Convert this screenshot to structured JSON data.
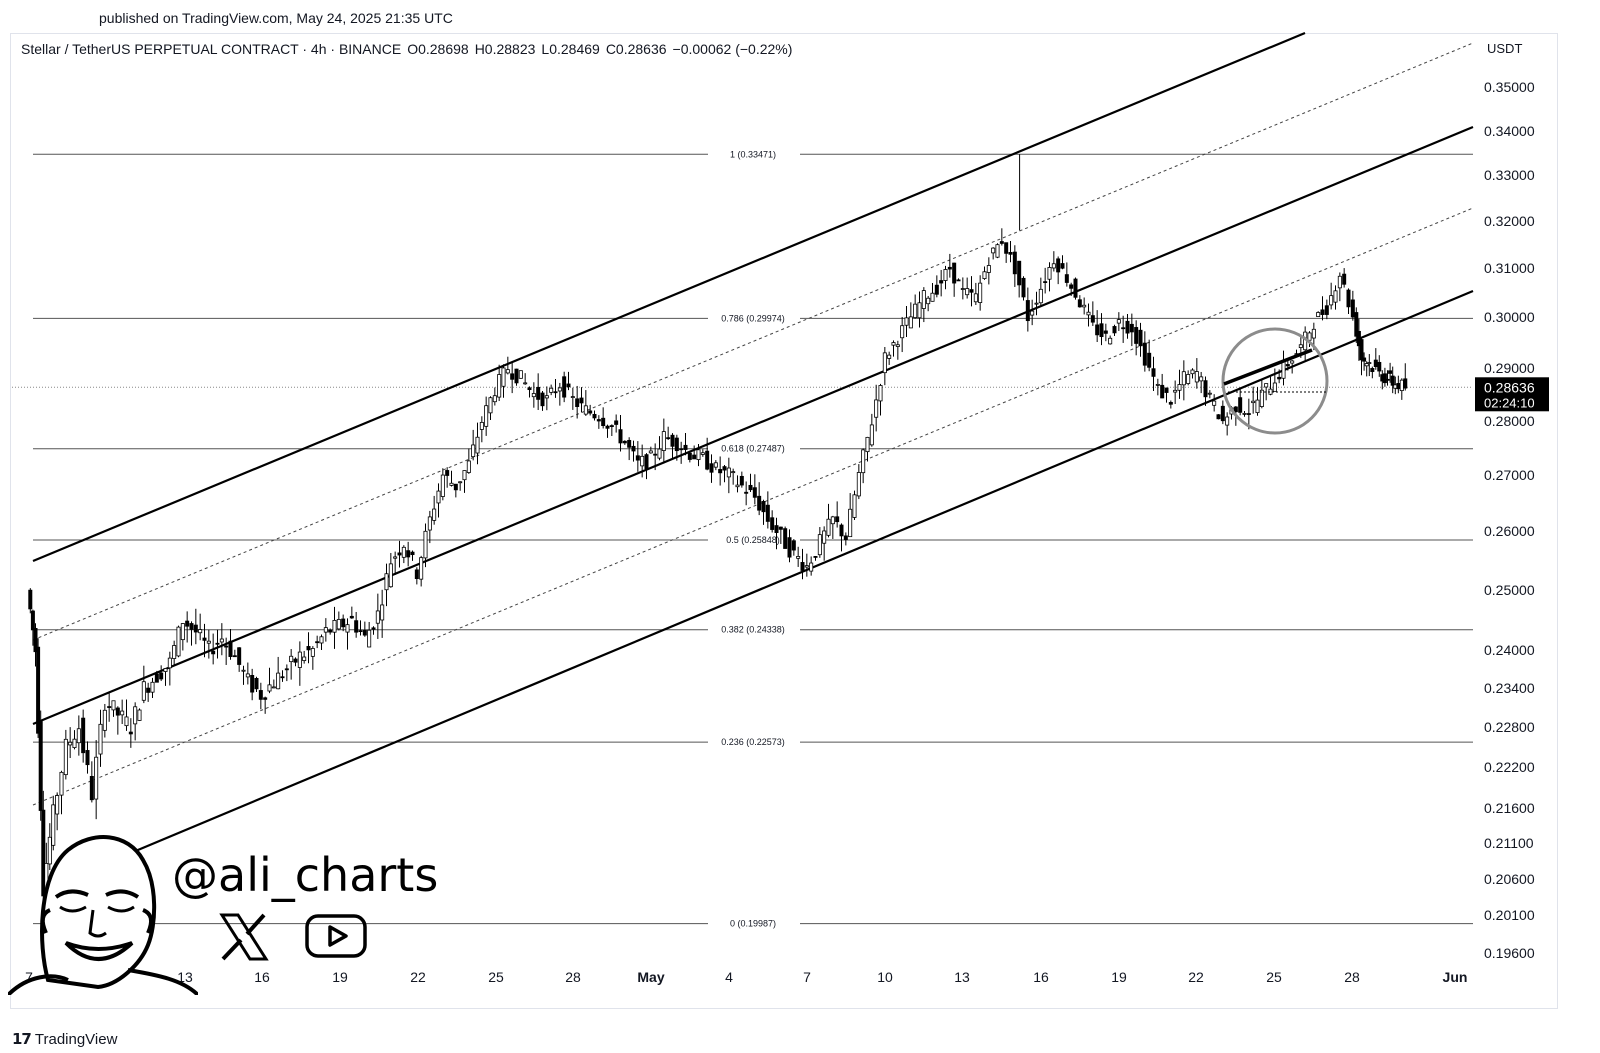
{
  "published": "published on TradingView.com, May 24, 2025 21:35 UTC",
  "symbol": {
    "name": "Stellar / TetherUS PERPETUAL CONTRACT · 4h · BINANCE",
    "open": "O0.28698",
    "high": "H0.28823",
    "low": "L0.28469",
    "close": "C0.28636",
    "change": "−0.00062 (−0.22%)"
  },
  "currency": "USDT",
  "brand": "TradingView",
  "watermark_handle": "@ali_charts",
  "chart_data": {
    "type": "candlestick",
    "y_axis_ticks": [
      "0.35000",
      "0.34000",
      "0.33000",
      "0.32000",
      "0.31000",
      "0.30000",
      "0.29000",
      "0.28000",
      "0.27000",
      "0.26000",
      "0.25000",
      "0.24000",
      "0.23400",
      "0.22800",
      "0.22200",
      "0.21600",
      "0.21100",
      "0.20600",
      "0.20100",
      "0.19600"
    ],
    "x_axis_ticks": [
      "7",
      "10",
      "13",
      "16",
      "19",
      "22",
      "25",
      "28",
      "May",
      "4",
      "7",
      "10",
      "13",
      "16",
      "19",
      "22",
      "25",
      "28",
      "Jun"
    ],
    "last_price": "0.28636",
    "countdown": "02:24:10",
    "fib_levels": [
      {
        "label": "1 (0.33471)",
        "value": 0.33471
      },
      {
        "label": "0.786 (0.29974)",
        "value": 0.29974
      },
      {
        "label": "0.618 (0.27487)",
        "value": 0.27487
      },
      {
        "label": "0.5 (0.25848)",
        "value": 0.25848
      },
      {
        "label": "0.382 (0.24338)",
        "value": 0.24338
      },
      {
        "label": "0.236 (0.22573)",
        "value": 0.22573
      },
      {
        "label": "0 (0.19987)",
        "value": 0.19987
      }
    ],
    "price_path": [
      [
        7.0,
        0.25
      ],
      [
        7.3,
        0.24
      ],
      [
        7.6,
        0.205
      ],
      [
        8.0,
        0.215
      ],
      [
        8.5,
        0.225
      ],
      [
        9.0,
        0.228
      ],
      [
        9.5,
        0.218
      ],
      [
        10.0,
        0.232
      ],
      [
        10.5,
        0.23
      ],
      [
        11.0,
        0.228
      ],
      [
        11.5,
        0.234
      ],
      [
        12.0,
        0.236
      ],
      [
        12.5,
        0.238
      ],
      [
        13.0,
        0.245
      ],
      [
        13.5,
        0.243
      ],
      [
        14.0,
        0.24
      ],
      [
        14.5,
        0.242
      ],
      [
        15.0,
        0.239
      ],
      [
        15.5,
        0.235
      ],
      [
        16.0,
        0.233
      ],
      [
        16.5,
        0.235
      ],
      [
        17.0,
        0.237
      ],
      [
        17.5,
        0.239
      ],
      [
        18.0,
        0.24
      ],
      [
        18.5,
        0.243
      ],
      [
        19.0,
        0.244
      ],
      [
        19.5,
        0.245
      ],
      [
        20.0,
        0.242
      ],
      [
        20.5,
        0.246
      ],
      [
        21.0,
        0.255
      ],
      [
        21.5,
        0.258
      ],
      [
        22.0,
        0.253
      ],
      [
        22.5,
        0.262
      ],
      [
        23.0,
        0.27
      ],
      [
        23.5,
        0.268
      ],
      [
        24.0,
        0.272
      ],
      [
        24.5,
        0.28
      ],
      [
        25.0,
        0.286
      ],
      [
        25.5,
        0.29
      ],
      [
        26.0,
        0.288
      ],
      [
        26.5,
        0.285
      ],
      [
        27.0,
        0.284
      ],
      [
        27.5,
        0.287
      ],
      [
        28.0,
        0.284
      ],
      [
        28.5,
        0.282
      ],
      [
        29.0,
        0.281
      ],
      [
        29.5,
        0.279
      ],
      [
        30.0,
        0.276
      ],
      [
        30.5,
        0.272
      ],
      [
        31.0,
        0.273
      ],
      [
        31.5,
        0.277
      ],
      [
        32.0,
        0.276
      ],
      [
        32.5,
        0.274
      ],
      [
        33.0,
        0.273
      ],
      [
        33.5,
        0.271
      ],
      [
        34.0,
        0.27
      ],
      [
        34.5,
        0.268
      ],
      [
        35.0,
        0.266
      ],
      [
        35.5,
        0.262
      ],
      [
        36.0,
        0.259
      ],
      [
        36.5,
        0.256
      ],
      [
        37.0,
        0.254
      ],
      [
        37.5,
        0.258
      ],
      [
        38.0,
        0.262
      ],
      [
        38.5,
        0.259
      ],
      [
        39.0,
        0.27
      ],
      [
        39.5,
        0.28
      ],
      [
        40.0,
        0.292
      ],
      [
        40.5,
        0.296
      ],
      [
        41.0,
        0.3
      ],
      [
        41.5,
        0.304
      ],
      [
        42.0,
        0.306
      ],
      [
        42.5,
        0.31
      ],
      [
        43.0,
        0.305
      ],
      [
        43.5,
        0.304
      ],
      [
        44.0,
        0.312
      ],
      [
        44.5,
        0.316
      ],
      [
        45.0,
        0.31
      ],
      [
        45.5,
        0.3
      ],
      [
        46.0,
        0.306
      ],
      [
        46.5,
        0.312
      ],
      [
        47.0,
        0.308
      ],
      [
        47.5,
        0.303
      ],
      [
        48.0,
        0.298
      ],
      [
        48.5,
        0.296
      ],
      [
        49.0,
        0.299
      ],
      [
        49.5,
        0.298
      ],
      [
        50.0,
        0.292
      ],
      [
        50.5,
        0.286
      ],
      [
        51.0,
        0.284
      ],
      [
        51.5,
        0.288
      ],
      [
        52.0,
        0.289
      ],
      [
        52.5,
        0.284
      ],
      [
        53.0,
        0.28
      ],
      [
        53.5,
        0.283
      ],
      [
        54.0,
        0.282
      ],
      [
        54.5,
        0.285
      ],
      [
        55.0,
        0.288
      ],
      [
        55.5,
        0.291
      ],
      [
        56.0,
        0.294
      ],
      [
        56.5,
        0.299
      ],
      [
        57.0,
        0.302
      ],
      [
        57.5,
        0.309
      ],
      [
        58.0,
        0.3
      ],
      [
        58.3,
        0.292
      ],
      [
        58.6,
        0.291
      ],
      [
        59.0,
        0.289
      ],
      [
        59.3,
        0.288
      ],
      [
        59.6,
        0.287
      ],
      [
        60.0,
        0.28636
      ]
    ],
    "spike_high": {
      "x": 45.1,
      "value": 0.33471
    }
  }
}
